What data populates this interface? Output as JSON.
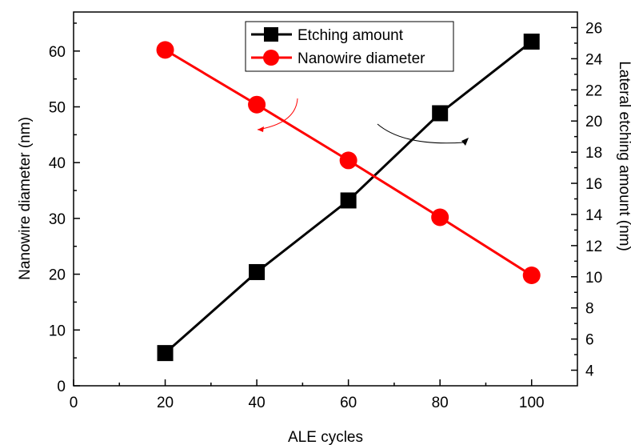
{
  "chart_data": {
    "type": "line",
    "x": [
      20,
      40,
      60,
      80,
      100
    ],
    "xlabel": "ALE  cycles",
    "xlim": [
      0,
      110
    ],
    "xticks": [
      0,
      20,
      40,
      60,
      80,
      100
    ],
    "ylabel": "Nanowire diameter (nm)",
    "ylim": [
      0,
      67
    ],
    "yticks": [
      0,
      10,
      20,
      30,
      40,
      50,
      60
    ],
    "y2label": "Lateral etching amount (nm)",
    "y2lim": [
      3,
      27
    ],
    "y2ticks": [
      4,
      6,
      8,
      10,
      12,
      14,
      16,
      18,
      20,
      22,
      24,
      26
    ],
    "legend_position": "top-center",
    "grid": false,
    "series": [
      {
        "name": "Etching amount",
        "axis": "right",
        "marker": "square",
        "color": "#000000",
        "values": [
          5.1,
          10.3,
          14.9,
          20.5,
          25.1
        ]
      },
      {
        "name": "Nanowire diameter",
        "axis": "left",
        "marker": "circle",
        "color": "#ff0000",
        "values": [
          60.2,
          50.4,
          40.4,
          30.2,
          19.8
        ]
      }
    ]
  }
}
